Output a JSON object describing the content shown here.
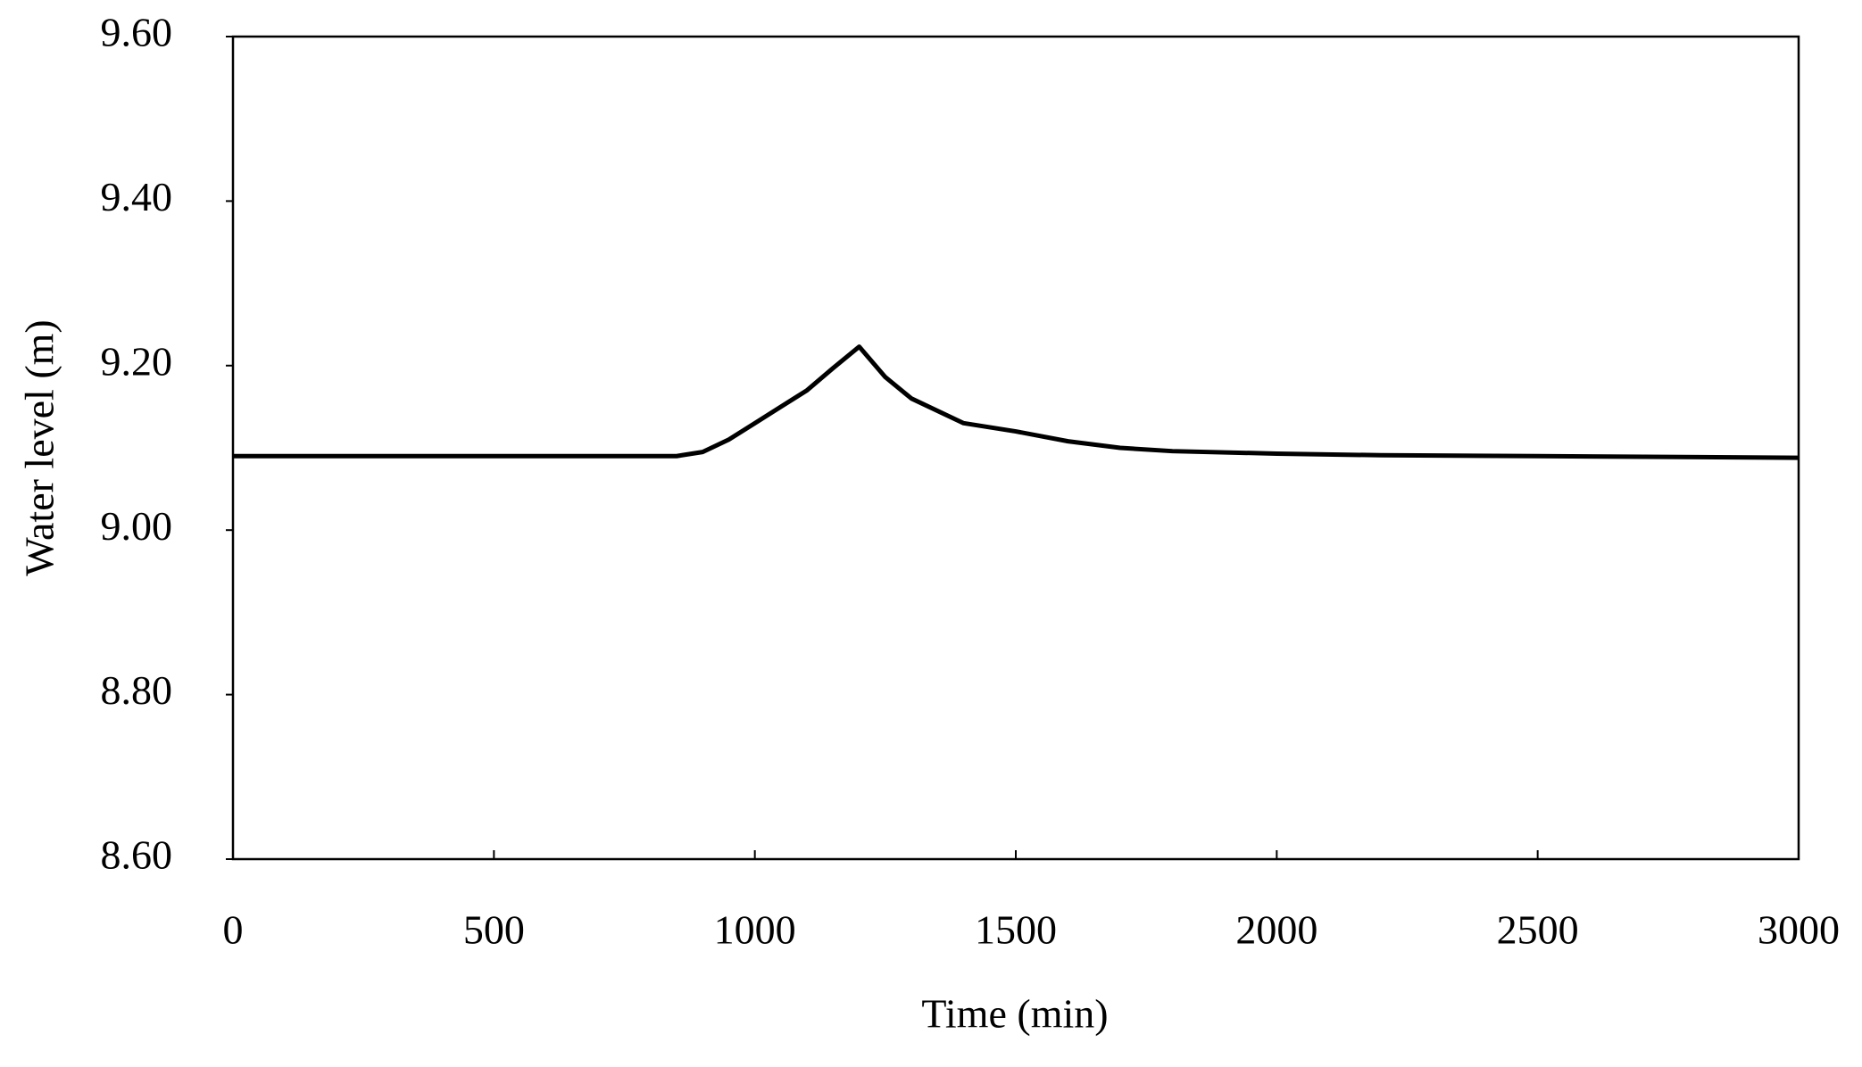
{
  "chart_data": {
    "type": "line",
    "xlabel": "Time (min)",
    "ylabel": "Water level (m)",
    "x": [
      0,
      200,
      400,
      600,
      800,
      850,
      900,
      950,
      1000,
      1050,
      1100,
      1150,
      1200,
      1250,
      1300,
      1400,
      1500,
      1600,
      1700,
      1800,
      2000,
      2200,
      2500,
      3000
    ],
    "series": [
      {
        "color": "#000000",
        "values": [
          9.09,
          9.09,
          9.09,
          9.09,
          9.09,
          9.09,
          9.095,
          9.11,
          9.13,
          9.15,
          9.17,
          9.197,
          9.223,
          9.186,
          9.16,
          9.13,
          9.12,
          9.108,
          9.1,
          9.096,
          9.093,
          9.091,
          9.09,
          9.088
        ]
      }
    ],
    "xlim": [
      0,
      3000
    ],
    "xticks": [
      0,
      500,
      1000,
      1500,
      2000,
      2500,
      3000
    ],
    "ylim": [
      8.6,
      9.6
    ],
    "yticks": [
      {
        "value": 8.6,
        "label": "8.60"
      },
      {
        "value": 8.8,
        "label": "8.80"
      },
      {
        "value": 9.0,
        "label": "9.00"
      },
      {
        "value": 9.2,
        "label": "9.20"
      },
      {
        "value": 9.4,
        "label": "9.40"
      },
      {
        "value": 9.6,
        "label": "9.60"
      }
    ],
    "grid": false
  }
}
